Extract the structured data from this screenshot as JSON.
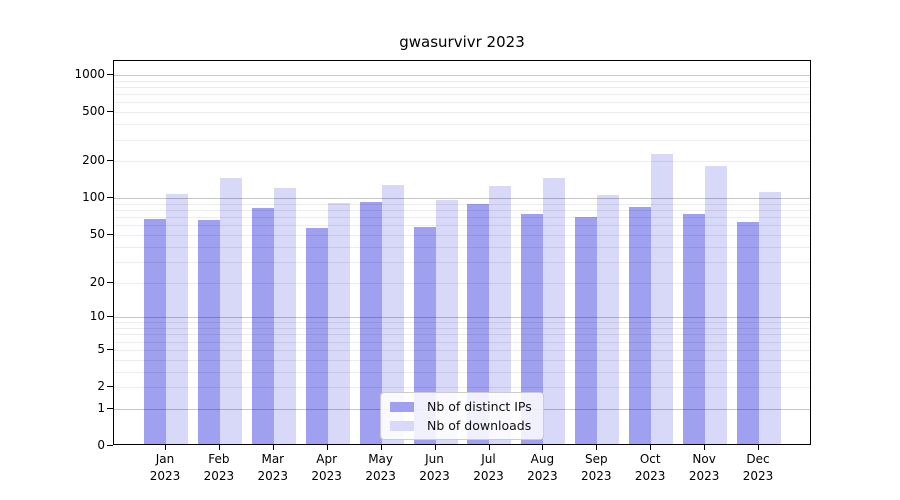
{
  "title": "gwasurvivr 2023",
  "chart_data": {
    "type": "bar",
    "title": "gwasurvivr 2023",
    "categories": [
      "Jan",
      "Feb",
      "Mar",
      "Apr",
      "May",
      "Jun",
      "Jul",
      "Aug",
      "Sep",
      "Oct",
      "Nov",
      "Dec"
    ],
    "category_year": "2023",
    "series": [
      {
        "name": "Nb of distinct IPs",
        "color": "#a0a0f0",
        "values": [
          65,
          64,
          80,
          55,
          90,
          56,
          86,
          72,
          68,
          82,
          71,
          61
        ]
      },
      {
        "name": "Nb of downloads",
        "color": "#d8d8f8",
        "values": [
          104,
          140,
          116,
          88,
          123,
          93,
          120,
          140,
          102,
          222,
          176,
          108
        ]
      }
    ],
    "y_axis": {
      "scale": "log1p",
      "tick_values": [
        0,
        1,
        2,
        5,
        10,
        20,
        50,
        100,
        200,
        500,
        1000
      ],
      "tick_labels": [
        "0",
        "1",
        "2",
        "5",
        "10",
        "20",
        "50",
        "100",
        "200",
        "500",
        "1000"
      ],
      "range_top": 1000,
      "grid_major_at": [
        1,
        10,
        100,
        1000
      ]
    },
    "grid": true,
    "legend_position": "inside-bottom-center"
  }
}
